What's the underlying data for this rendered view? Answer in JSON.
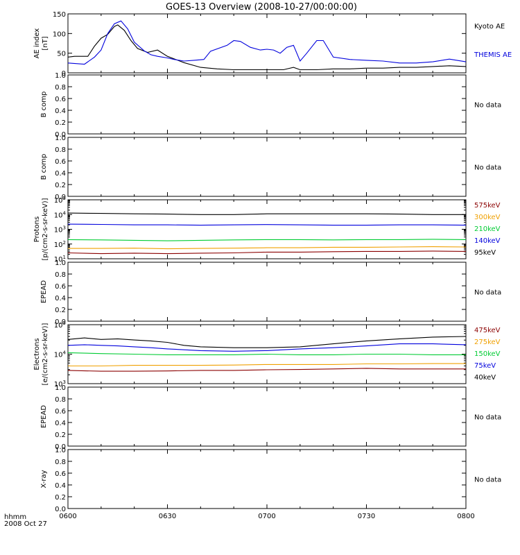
{
  "title": "GOES-13 Overview (2008-10-27/00:00:00)",
  "x_axis": {
    "ticks": [
      "0600",
      "0630",
      "0700",
      "0730",
      "0800"
    ],
    "corner_label_line1": "hhmm",
    "corner_label_line2": "2008 Oct 27"
  },
  "colors": {
    "black": "#000000",
    "blue": "#0000dd",
    "green": "#00cc33",
    "orange": "#f0a000",
    "red": "#8b0000"
  },
  "chart_data": [
    {
      "type": "line",
      "name": "ae-index",
      "ylabel": [
        "AE index",
        "[nT]"
      ],
      "yscale": "linear",
      "ylim": [
        0,
        150
      ],
      "yticks": [
        "0",
        "50",
        "100",
        "150"
      ],
      "x_range_minutes": [
        0,
        120
      ],
      "legend": [
        "Kyoto AE",
        "THEMIS AE"
      ],
      "series": [
        {
          "name": "Kyoto AE",
          "color": "black",
          "x": [
            0,
            2,
            6,
            8,
            10,
            12,
            14,
            15,
            17,
            19,
            21,
            24,
            27,
            30,
            35,
            40,
            45,
            50,
            55,
            60,
            65,
            68,
            70,
            75,
            80,
            85,
            90,
            95,
            100,
            105,
            110,
            115,
            120
          ],
          "values": [
            40,
            42,
            42,
            68,
            88,
            98,
            118,
            122,
            108,
            82,
            62,
            52,
            58,
            42,
            26,
            14,
            10,
            8,
            8,
            8,
            8,
            14,
            8,
            8,
            10,
            10,
            12,
            12,
            14,
            14,
            16,
            18,
            16
          ]
        },
        {
          "name": "THEMIS AE",
          "color": "blue",
          "x": [
            0,
            5,
            8,
            10,
            12,
            14,
            16,
            18,
            20,
            23,
            25,
            27,
            30,
            32,
            35,
            38,
            41,
            43,
            48,
            50,
            52,
            55,
            58,
            60,
            62,
            64,
            66,
            68,
            70,
            72,
            75,
            77,
            80,
            85,
            90,
            95,
            100,
            105,
            110,
            115,
            120
          ],
          "values": [
            25,
            22,
            40,
            58,
            100,
            125,
            132,
            112,
            78,
            56,
            46,
            42,
            38,
            34,
            30,
            32,
            34,
            55,
            70,
            82,
            80,
            65,
            58,
            60,
            58,
            50,
            65,
            70,
            30,
            50,
            82,
            82,
            40,
            34,
            32,
            30,
            25,
            25,
            28,
            35,
            28
          ]
        }
      ]
    },
    {
      "type": "line",
      "name": "b-comp-1",
      "ylabel": [
        "B comp"
      ],
      "yscale": "linear",
      "ylim": [
        0,
        1
      ],
      "yticks": [
        "0.0",
        "0.2",
        "0.4",
        "0.6",
        "0.8",
        "1.0"
      ],
      "status": "No data",
      "series": []
    },
    {
      "type": "line",
      "name": "b-comp-2",
      "ylabel": [
        "B comp"
      ],
      "yscale": "linear",
      "ylim": [
        0,
        1
      ],
      "yticks": [
        "0.0",
        "0.2",
        "0.4",
        "0.6",
        "0.8",
        "1.0"
      ],
      "status": "No data",
      "series": []
    },
    {
      "type": "line",
      "name": "protons",
      "ylabel": [
        "Protons",
        "[p/(cm2-s-sr-keV)]"
      ],
      "yscale": "log",
      "ylim": [
        1,
        5
      ],
      "yticks": [
        "10^1",
        "10^2",
        "10^3",
        "10^4",
        "10^5"
      ],
      "x_range_minutes": [
        0,
        120
      ],
      "legend": [
        "575keV",
        "300keV",
        "210keV",
        "140keV",
        "95keV"
      ],
      "series": [
        {
          "name": "95keV",
          "color": "black",
          "x": [
            0,
            10,
            20,
            30,
            40,
            50,
            60,
            70,
            80,
            90,
            100,
            110,
            120
          ],
          "log_values": [
            4.1,
            4.08,
            4.05,
            4.03,
            4.0,
            4.0,
            4.05,
            4.05,
            4.05,
            4.05,
            4.03,
            4.0,
            4.0
          ]
        },
        {
          "name": "140keV",
          "color": "blue",
          "x": [
            0,
            10,
            20,
            30,
            40,
            50,
            60,
            70,
            80,
            90,
            100,
            110,
            120
          ],
          "log_values": [
            3.35,
            3.33,
            3.3,
            3.3,
            3.28,
            3.3,
            3.32,
            3.3,
            3.28,
            3.28,
            3.3,
            3.3,
            3.28
          ]
        },
        {
          "name": "210keV",
          "color": "green",
          "x": [
            0,
            10,
            20,
            30,
            40,
            50,
            60,
            70,
            80,
            90,
            100,
            110,
            120
          ],
          "log_values": [
            2.3,
            2.28,
            2.25,
            2.22,
            2.25,
            2.28,
            2.3,
            2.3,
            2.28,
            2.3,
            2.3,
            2.32,
            2.3
          ]
        },
        {
          "name": "300keV",
          "color": "orange",
          "x": [
            0,
            10,
            20,
            30,
            40,
            50,
            60,
            70,
            80,
            90,
            100,
            110,
            120
          ],
          "log_values": [
            1.7,
            1.7,
            1.72,
            1.68,
            1.7,
            1.72,
            1.75,
            1.75,
            1.78,
            1.78,
            1.8,
            1.82,
            1.8
          ]
        },
        {
          "name": "575keV",
          "color": "red",
          "x": [
            0,
            10,
            20,
            30,
            40,
            50,
            60,
            70,
            80,
            90,
            100,
            110,
            120
          ],
          "log_values": [
            1.4,
            1.35,
            1.38,
            1.35,
            1.38,
            1.4,
            1.45,
            1.45,
            1.48,
            1.5,
            1.5,
            1.52,
            1.5
          ]
        }
      ]
    },
    {
      "type": "line",
      "name": "epead-1",
      "ylabel": [
        "EPEAD"
      ],
      "yscale": "linear",
      "ylim": [
        0,
        1
      ],
      "yticks": [
        "0.0",
        "0.2",
        "0.4",
        "0.6",
        "0.8",
        "1.0"
      ],
      "status": "No data",
      "series": []
    },
    {
      "type": "line",
      "name": "electrons",
      "ylabel": [
        "Electrons",
        "[e/(cm2-s-sr-keV)]"
      ],
      "yscale": "log",
      "ylim": [
        3,
        5
      ],
      "yticks": [
        "10^3",
        "10^4",
        "10^5"
      ],
      "x_range_minutes": [
        0,
        120
      ],
      "legend": [
        "475keV",
        "275keV",
        "150keV",
        "75keV",
        "40keV"
      ],
      "series": [
        {
          "name": "40keV",
          "color": "black",
          "x": [
            0,
            5,
            10,
            15,
            20,
            25,
            30,
            35,
            40,
            50,
            60,
            70,
            80,
            90,
            100,
            110,
            120
          ],
          "log_values": [
            4.5,
            4.55,
            4.5,
            4.52,
            4.48,
            4.45,
            4.4,
            4.3,
            4.25,
            4.22,
            4.22,
            4.25,
            4.35,
            4.45,
            4.52,
            4.58,
            4.6
          ]
        },
        {
          "name": "75keV",
          "color": "blue",
          "x": [
            0,
            5,
            10,
            15,
            20,
            25,
            30,
            40,
            50,
            60,
            70,
            80,
            90,
            100,
            110,
            120
          ],
          "log_values": [
            4.3,
            4.32,
            4.3,
            4.28,
            4.25,
            4.22,
            4.18,
            4.12,
            4.1,
            4.12,
            4.18,
            4.22,
            4.28,
            4.35,
            4.35,
            4.32
          ]
        },
        {
          "name": "150keV",
          "color": "green",
          "x": [
            0,
            10,
            20,
            30,
            40,
            50,
            60,
            70,
            80,
            90,
            100,
            110,
            120
          ],
          "log_values": [
            4.05,
            4.02,
            4.0,
            3.98,
            3.98,
            3.98,
            4.0,
            3.98,
            3.98,
            4.0,
            4.0,
            3.98,
            3.98
          ]
        },
        {
          "name": "275keV",
          "color": "orange",
          "x": [
            0,
            10,
            20,
            30,
            40,
            50,
            60,
            70,
            80,
            90,
            100,
            110,
            120
          ],
          "log_values": [
            3.6,
            3.6,
            3.62,
            3.62,
            3.62,
            3.63,
            3.65,
            3.65,
            3.65,
            3.67,
            3.67,
            3.68,
            3.68
          ]
        },
        {
          "name": "475keV",
          "color": "red",
          "x": [
            0,
            10,
            20,
            30,
            40,
            50,
            60,
            70,
            80,
            90,
            100,
            110,
            120
          ],
          "log_values": [
            3.45,
            3.42,
            3.42,
            3.43,
            3.45,
            3.45,
            3.47,
            3.48,
            3.5,
            3.52,
            3.5,
            3.5,
            3.5
          ]
        }
      ]
    },
    {
      "type": "line",
      "name": "epead-2",
      "ylabel": [
        "EPEAD"
      ],
      "yscale": "linear",
      "ylim": [
        0,
        1
      ],
      "yticks": [
        "0.0",
        "0.2",
        "0.4",
        "0.6",
        "0.8",
        "1.0"
      ],
      "status": "No data",
      "series": []
    },
    {
      "type": "line",
      "name": "x-ray",
      "ylabel": [
        "X-ray"
      ],
      "yscale": "linear",
      "ylim": [
        0,
        1
      ],
      "yticks": [
        "0.0",
        "0.2",
        "0.4",
        "0.6",
        "0.8",
        "1.0"
      ],
      "status": "No data",
      "series": []
    }
  ]
}
